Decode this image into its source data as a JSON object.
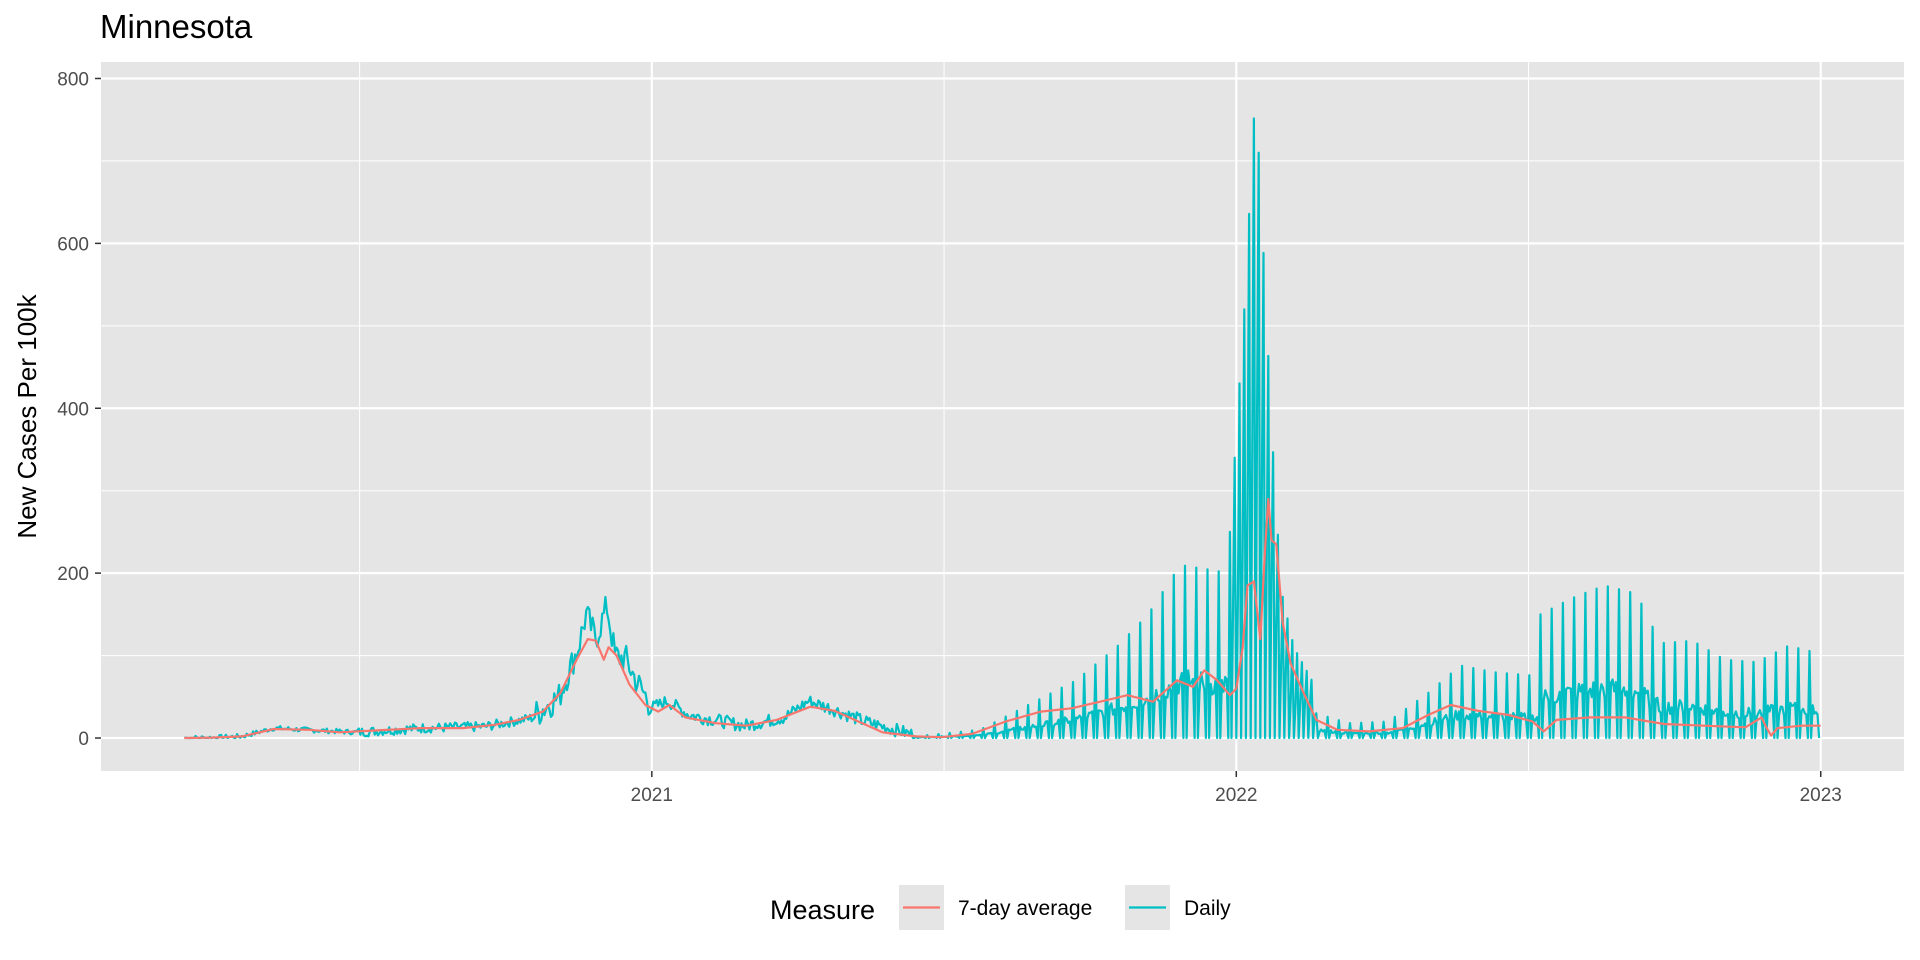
{
  "chart_data": {
    "type": "line",
    "title": "Minnesota",
    "xlabel": "",
    "ylabel": "New Cases Per 100k",
    "ylim": [
      -40,
      820
    ],
    "xlim": [
      "2020-01-23",
      "2023-02-22"
    ],
    "x_ticks": [
      {
        "date": "2021-01-01",
        "label": "2021"
      },
      {
        "date": "2022-01-01",
        "label": "2022"
      },
      {
        "date": "2023-01-01",
        "label": "2023"
      }
    ],
    "y_ticks": [
      0,
      200,
      400,
      600,
      800
    ],
    "grid": true,
    "legend": {
      "title": "Measure",
      "position": "bottom"
    },
    "colors": {
      "panel": "#e5e5e5",
      "grid": "#ffffff",
      "avg": "#f8766d",
      "daily": "#00bfc4"
    },
    "series": [
      {
        "name": "7-day average",
        "color": "#f8766d",
        "points": [
          [
            "2020-03-15",
            0
          ],
          [
            "2020-04-01",
            0.5
          ],
          [
            "2020-04-20",
            2
          ],
          [
            "2020-05-10",
            11
          ],
          [
            "2020-06-01",
            10
          ],
          [
            "2020-06-20",
            7
          ],
          [
            "2020-07-20",
            10
          ],
          [
            "2020-08-10",
            12
          ],
          [
            "2020-09-05",
            12
          ],
          [
            "2020-09-25",
            16
          ],
          [
            "2020-10-10",
            22
          ],
          [
            "2020-10-25",
            32
          ],
          [
            "2020-11-05",
            55
          ],
          [
            "2020-11-15",
            95
          ],
          [
            "2020-11-22",
            120
          ],
          [
            "2020-11-27",
            118
          ],
          [
            "2020-12-02",
            95
          ],
          [
            "2020-12-05",
            110
          ],
          [
            "2020-12-10",
            100
          ],
          [
            "2020-12-18",
            65
          ],
          [
            "2020-12-28",
            40
          ],
          [
            "2021-01-05",
            32
          ],
          [
            "2021-01-12",
            40
          ],
          [
            "2021-01-22",
            25
          ],
          [
            "2021-02-10",
            18
          ],
          [
            "2021-03-01",
            15
          ],
          [
            "2021-03-20",
            22
          ],
          [
            "2021-04-10",
            38
          ],
          [
            "2021-04-25",
            33
          ],
          [
            "2021-05-10",
            20
          ],
          [
            "2021-05-25",
            7
          ],
          [
            "2021-06-15",
            2
          ],
          [
            "2021-07-01",
            1
          ],
          [
            "2021-07-20",
            5
          ],
          [
            "2021-08-10",
            20
          ],
          [
            "2021-09-01",
            32
          ],
          [
            "2021-09-20",
            36
          ],
          [
            "2021-10-10",
            45
          ],
          [
            "2021-10-25",
            52
          ],
          [
            "2021-11-10",
            44
          ],
          [
            "2021-11-25",
            70
          ],
          [
            "2021-12-05",
            62
          ],
          [
            "2021-12-12",
            82
          ],
          [
            "2021-12-20",
            70
          ],
          [
            "2021-12-28",
            52
          ],
          [
            "2022-01-01",
            60
          ],
          [
            "2022-01-05",
            110
          ],
          [
            "2022-01-08",
            185
          ],
          [
            "2022-01-12",
            190
          ],
          [
            "2022-01-16",
            120
          ],
          [
            "2022-01-19",
            230
          ],
          [
            "2022-01-21",
            290
          ],
          [
            "2022-01-23",
            240
          ],
          [
            "2022-01-26",
            235
          ],
          [
            "2022-01-30",
            140
          ],
          [
            "2022-02-04",
            90
          ],
          [
            "2022-02-12",
            55
          ],
          [
            "2022-02-20",
            22
          ],
          [
            "2022-03-05",
            10
          ],
          [
            "2022-03-25",
            8
          ],
          [
            "2022-04-15",
            12
          ],
          [
            "2022-05-01",
            28
          ],
          [
            "2022-05-15",
            40
          ],
          [
            "2022-06-01",
            33
          ],
          [
            "2022-06-20",
            28
          ],
          [
            "2022-07-05",
            20
          ],
          [
            "2022-07-12",
            8
          ],
          [
            "2022-07-20",
            22
          ],
          [
            "2022-08-10",
            25
          ],
          [
            "2022-09-01",
            25
          ],
          [
            "2022-09-25",
            17
          ],
          [
            "2022-10-20",
            15
          ],
          [
            "2022-11-15",
            13
          ],
          [
            "2022-11-25",
            25
          ],
          [
            "2022-11-28",
            13
          ],
          [
            "2022-12-01",
            3
          ],
          [
            "2022-12-05",
            12
          ],
          [
            "2022-12-20",
            15
          ],
          [
            "2023-01-01",
            15
          ]
        ]
      },
      {
        "name": "Daily",
        "color": "#00bfc4",
        "segments": [
          {
            "start": "2020-03-15",
            "end": "2020-07-01",
            "step": 1,
            "base": 0,
            "peak": [
              [
                0,
                0
              ],
              [
                18,
                0.5
              ],
              [
                36,
                2
              ],
              [
                56,
                12
              ],
              [
                75,
                10
              ],
              [
                108,
                7
              ]
            ],
            "spike_every": 0,
            "spike": [],
            "jitter": 3
          },
          {
            "start": "2020-07-01",
            "end": "2020-10-20",
            "step": 1,
            "base": 8,
            "peak": [
              [
                0,
                7
              ],
              [
                40,
                12
              ],
              [
                80,
                14
              ],
              [
                111,
                25
              ]
            ],
            "spike_every": 0,
            "spike": [],
            "jitter": 6
          },
          {
            "start": "2020-10-20",
            "end": "2020-12-30",
            "step": 1,
            "base": 30,
            "peak": [
              [
                0,
                28
              ],
              [
                15,
                50
              ],
              [
                27,
                110
              ],
              [
                32,
                150
              ],
              [
                38,
                120
              ],
              [
                45,
                160
              ],
              [
                50,
                100
              ],
              [
                57,
                95
              ],
              [
                63,
                70
              ],
              [
                71,
                45
              ]
            ],
            "spike_every": 0,
            "spike": [],
            "jitter": 18
          },
          {
            "start": "2020-12-30",
            "end": "2021-06-15",
            "step": 1,
            "base": 20,
            "peak": [
              [
                0,
                35
              ],
              [
                12,
                45
              ],
              [
                25,
                28
              ],
              [
                60,
                15
              ],
              [
                85,
                25
              ],
              [
                100,
                45
              ],
              [
                115,
                35
              ],
              [
                135,
                20
              ],
              [
                167,
                3
              ]
            ],
            "spike_every": 0,
            "spike": [],
            "jitter": 8
          },
          {
            "start": "2021-06-15",
            "end": "2021-12-28",
            "step": 1,
            "base": 5,
            "peak": [
              [
                0,
                2
              ],
              [
                40,
                10
              ],
              [
                70,
                40
              ],
              [
                100,
                70
              ],
              [
                125,
                110
              ],
              [
                145,
                150
              ],
              [
                165,
                210
              ],
              [
                196,
                200
              ]
            ],
            "spike_every": 7,
            "spike": [],
            "jitter": 0
          },
          {
            "start": "2021-12-28",
            "end": "2022-02-20",
            "step": 1,
            "base": 0,
            "peak": [
              [
                0,
                250
              ],
              [
                9,
                520
              ],
              [
                16,
                790
              ],
              [
                20,
                630
              ],
              [
                26,
                380
              ],
              [
                32,
                180
              ],
              [
                40,
                110
              ],
              [
                54,
                60
              ]
            ],
            "spike_every": 3,
            "spike": [],
            "jitter": 0
          },
          {
            "start": "2022-02-20",
            "end": "2022-07-10",
            "step": 1,
            "base": 0,
            "peak": [
              [
                0,
                30
              ],
              [
                20,
                18
              ],
              [
                45,
                20
              ],
              [
                70,
                55
              ],
              [
                90,
                88
              ],
              [
                110,
                80
              ],
              [
                140,
                75
              ]
            ],
            "spike_every": 7,
            "spike": [],
            "jitter": 0
          },
          {
            "start": "2022-07-10",
            "end": "2023-01-01",
            "step": 1,
            "base": 0,
            "peak": [
              [
                0,
                150
              ],
              [
                20,
                170
              ],
              [
                40,
                185
              ],
              [
                60,
                175
              ],
              [
                75,
                115
              ],
              [
                95,
                118
              ],
              [
                115,
                95
              ],
              [
                135,
                92
              ],
              [
                155,
                112
              ],
              [
                175,
                102
              ]
            ],
            "spike_every": 7,
            "spike": [],
            "jitter": 0
          }
        ]
      }
    ]
  }
}
